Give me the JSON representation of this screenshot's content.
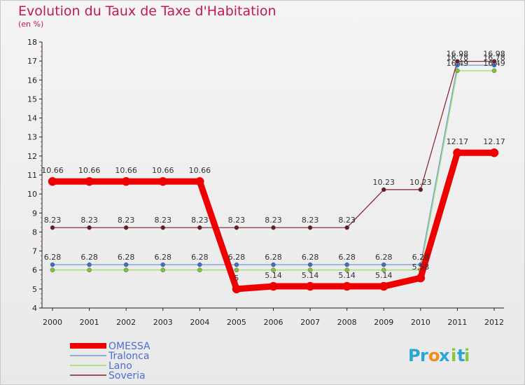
{
  "chart_data": {
    "type": "line",
    "title": "Evolution du Taux de Taxe d'Habitation",
    "unit": "(en %)",
    "x": [
      "2000",
      "2001",
      "2002",
      "2003",
      "2004",
      "2005",
      "2006",
      "2007",
      "2008",
      "2009",
      "2010",
      "2011",
      "2012"
    ],
    "ylim": [
      4,
      18
    ],
    "yticks": [
      "4",
      "5",
      "6",
      "7",
      "8",
      "9",
      "10",
      "11",
      "12",
      "13",
      "14",
      "15",
      "16",
      "17",
      "18"
    ],
    "series": [
      {
        "name": "Soveria",
        "color": "#7b1f2a",
        "marker": "#6a1a22",
        "width": 1.2,
        "values": [
          8.23,
          8.23,
          8.23,
          8.23,
          8.23,
          8.23,
          8.23,
          8.23,
          8.23,
          10.23,
          10.23,
          16.98,
          16.98
        ],
        "labels": [
          "8.23",
          "8.23",
          "8.23",
          "8.23",
          "8.23",
          "8.23",
          "8.23",
          "8.23",
          "8.23",
          "10.23",
          "10.23",
          "16.98",
          "16.98"
        ]
      },
      {
        "name": "Tralonca",
        "color": "#6f9bd6",
        "marker": "#3f6fc8",
        "width": 1.2,
        "values": [
          6.28,
          6.28,
          6.28,
          6.28,
          6.28,
          6.28,
          6.28,
          6.28,
          6.28,
          6.28,
          6.28,
          16.78,
          16.78
        ],
        "labels": [
          "6.28",
          "6.28",
          "6.28",
          "6.28",
          "6.28",
          "6.28",
          "6.28",
          "6.28",
          "6.28",
          "6.28",
          "6.28",
          "16.78",
          "16.78"
        ]
      },
      {
        "name": "Lano",
        "color": "#99dd66",
        "marker": "#7cc43c",
        "width": 1.2,
        "values": [
          6.0,
          6.0,
          6.0,
          6.0,
          6.0,
          6.0,
          6.0,
          6.0,
          6.0,
          6.0,
          6.0,
          16.49,
          16.49
        ],
        "labels": [
          "",
          "",
          "",
          "",
          "",
          "",
          "",
          "",
          "",
          "",
          "",
          "16.49",
          "16.49"
        ]
      },
      {
        "name": "OMESSA",
        "color": "#ee0000",
        "marker": "#ee0000",
        "width": 9,
        "values": [
          10.66,
          10.66,
          10.66,
          10.66,
          10.66,
          5.0,
          5.14,
          5.14,
          5.14,
          5.14,
          5.58,
          12.17,
          12.17
        ],
        "labels": [
          "10.66",
          "10.66",
          "10.66",
          "10.66",
          "10.66",
          "5",
          "5.14",
          "5.14",
          "5.14",
          "5.14",
          "5.58",
          "12.17",
          "12.17"
        ]
      }
    ],
    "legend": [
      "OMESSA",
      "Tralonca",
      "Lano",
      "Soveria"
    ]
  },
  "colors": {
    "title": "#c2185b",
    "axis": "#222222",
    "tick_minor": "#d04070"
  },
  "logo": {
    "letters": [
      "P",
      "r",
      "o",
      "x",
      "i",
      "t",
      "i"
    ],
    "letter_colors": [
      "#2aa5d8",
      "#2aa5d8",
      "#f28c1c",
      "#2aa5d8",
      "#8cc63f",
      "#2aa5d8",
      "#8cc63f"
    ]
  }
}
